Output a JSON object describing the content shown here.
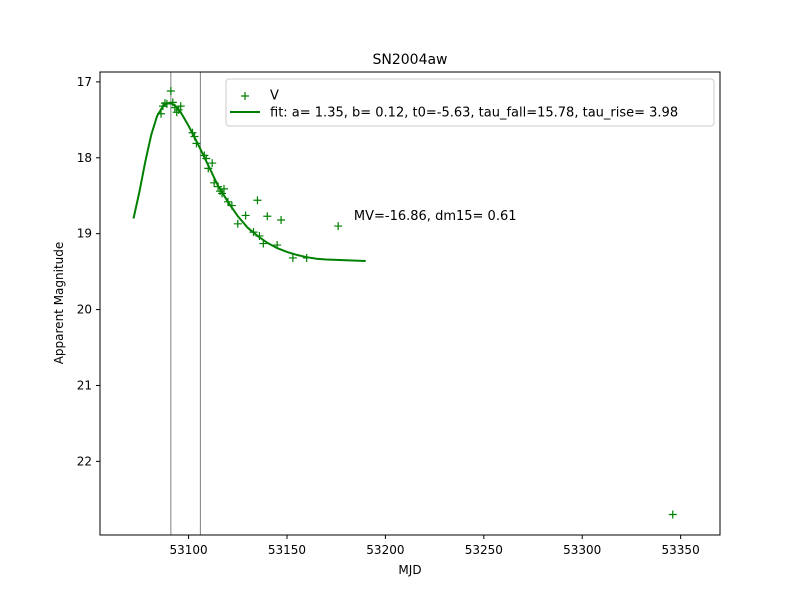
{
  "chart_data": {
    "type": "scatter",
    "title": "SN2004aw",
    "xlabel": "MJD",
    "ylabel": "Apparent Magnitude",
    "xlim": [
      53055,
      53370
    ],
    "ylim": [
      16.87,
      22.97
    ],
    "y_inverted": true,
    "x_ticks": [
      53100,
      53150,
      53200,
      53250,
      53300,
      53350
    ],
    "y_ticks": [
      17,
      18,
      19,
      20,
      21,
      22
    ],
    "grid": false,
    "legend_position": "upper-right",
    "vertical_lines": [
      53091,
      53106
    ],
    "vertical_line_color": "#808080",
    "annotation": "MV=-16.86, dm15= 0.61",
    "annotation_at": {
      "x": 53184,
      "y": 18.77
    },
    "series": [
      {
        "name": "V",
        "kind": "points",
        "marker": "+",
        "color": "#008000",
        "points": [
          [
            53086,
            17.42
          ],
          [
            53087,
            17.32
          ],
          [
            53088,
            17.28
          ],
          [
            53089,
            17.29
          ],
          [
            53091,
            17.12
          ],
          [
            53092,
            17.27
          ],
          [
            53093,
            17.34
          ],
          [
            53094,
            17.4
          ],
          [
            53095,
            17.37
          ],
          [
            53096,
            17.32
          ],
          [
            53102,
            17.67
          ],
          [
            53103,
            17.72
          ],
          [
            53104,
            17.81
          ],
          [
            53108,
            17.97
          ],
          [
            53109,
            18.01
          ],
          [
            53110,
            18.14
          ],
          [
            53112,
            18.07
          ],
          [
            53113,
            18.33
          ],
          [
            53115,
            18.38
          ],
          [
            53116,
            18.44
          ],
          [
            53117,
            18.47
          ],
          [
            53118,
            18.41
          ],
          [
            53120,
            18.58
          ],
          [
            53122,
            18.63
          ],
          [
            53125,
            18.87
          ],
          [
            53129,
            18.76
          ],
          [
            53133,
            18.98
          ],
          [
            53135,
            18.56
          ],
          [
            53136,
            19.03
          ],
          [
            53138,
            19.13
          ],
          [
            53140,
            18.77
          ],
          [
            53145,
            19.15
          ],
          [
            53147,
            18.82
          ],
          [
            53153,
            19.32
          ],
          [
            53160,
            19.32
          ],
          [
            53176,
            18.9
          ],
          [
            53346,
            22.7
          ]
        ]
      },
      {
        "name": "fit: a= 1.35, b= 0.12, t0=-5.63, tau_fall=15.78, tau_rise= 3.98",
        "kind": "line",
        "color": "#008000",
        "points": [
          [
            53072,
            18.8
          ],
          [
            53075,
            18.45
          ],
          [
            53078,
            18.05
          ],
          [
            53081,
            17.7
          ],
          [
            53084,
            17.45
          ],
          [
            53087,
            17.32
          ],
          [
            53089,
            17.28
          ],
          [
            53091,
            17.28
          ],
          [
            53093,
            17.31
          ],
          [
            53096,
            17.4
          ],
          [
            53100,
            17.58
          ],
          [
            53105,
            17.83
          ],
          [
            53110,
            18.1
          ],
          [
            53115,
            18.37
          ],
          [
            53120,
            18.58
          ],
          [
            53125,
            18.77
          ],
          [
            53130,
            18.92
          ],
          [
            53135,
            19.03
          ],
          [
            53140,
            19.12
          ],
          [
            53145,
            19.19
          ],
          [
            53150,
            19.24
          ],
          [
            53155,
            19.28
          ],
          [
            53160,
            19.31
          ],
          [
            53165,
            19.33
          ],
          [
            53170,
            19.34
          ],
          [
            53180,
            19.35
          ],
          [
            53190,
            19.36
          ]
        ]
      }
    ]
  }
}
